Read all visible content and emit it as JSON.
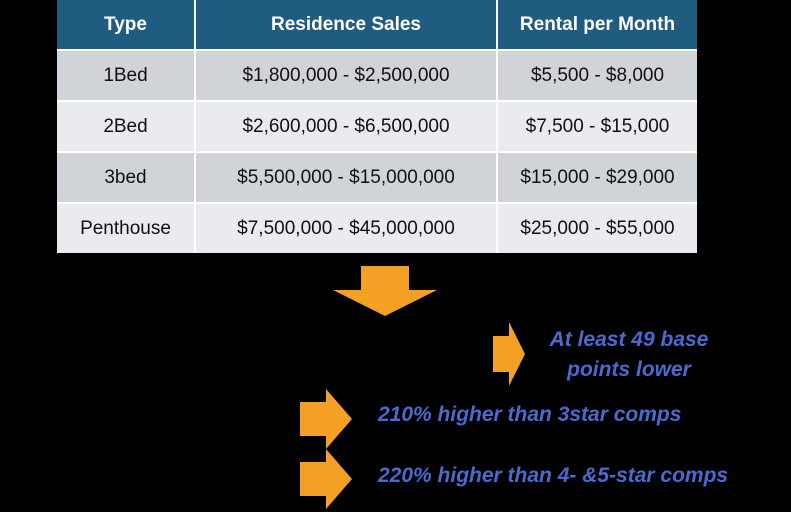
{
  "table": {
    "headers": [
      "Type",
      "Residence Sales",
      "Rental per Month"
    ],
    "rows": [
      [
        "1Bed",
        "$1,800,000 - $2,500,000",
        "$5,500 - $8,000"
      ],
      [
        "2Bed",
        "$2,600,000 - $6,500,000",
        "$7,500 - $15,000"
      ],
      [
        "3bed",
        "$5,500,000 - $15,000,000",
        "$15,000 - $29,000"
      ],
      [
        "Penthouse",
        "$7,500,000 - $45,000,000",
        "$25,000 - $55,000"
      ]
    ]
  },
  "callouts": {
    "first_line1": "At least 49 base",
    "first_line2": "points lower",
    "second": "210% higher than 3star comps",
    "third": "220% higher than 4- &5-star comps"
  },
  "colors": {
    "header_bg": "#1f5c80",
    "row_odd": "#d0d3d8",
    "row_even": "#e9ebee",
    "arrow": "#f3a024",
    "callout_text": "#4a6ad0",
    "background": "#000000"
  }
}
